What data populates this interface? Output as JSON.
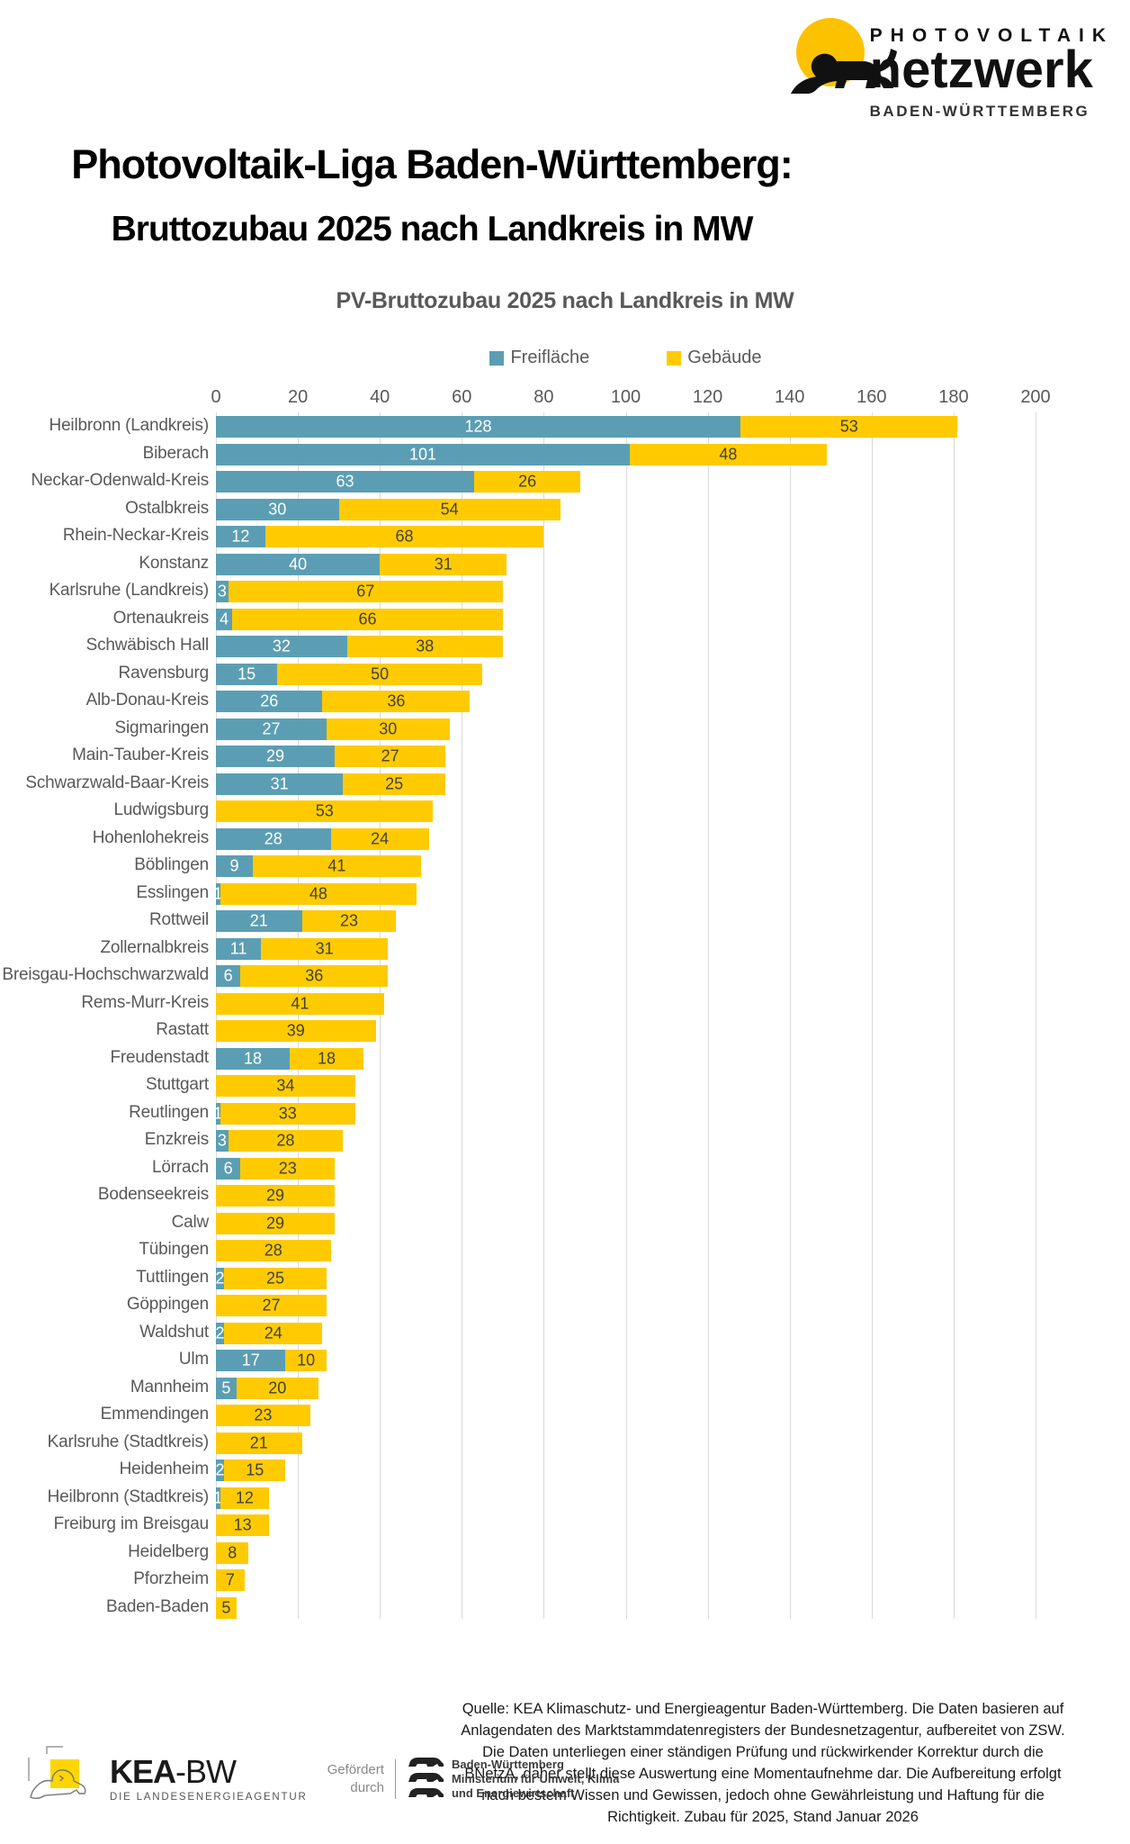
{
  "logo": {
    "line1": "PHOTOVOLTAIK",
    "line2": "netzwerk",
    "line3": "BADEN-WÜRTTEMBERG"
  },
  "title": {
    "line1": "Photovoltaik-Liga Baden-Württemberg:",
    "line2": "Bruttozubau 2025 nach Landkreis in MW"
  },
  "chart_data": {
    "type": "bar",
    "orientation": "horizontal",
    "stacked": true,
    "title": "PV-Bruttozubau 2025 nach Landkreis in MW",
    "legend": [
      "Freifläche",
      "Gebäude"
    ],
    "legend_position": "top",
    "grid": true,
    "x_axis": {
      "min": 0,
      "max": 200,
      "step": 20,
      "ticks": [
        0,
        20,
        40,
        60,
        80,
        100,
        120,
        140,
        160,
        180,
        200
      ]
    },
    "colors": {
      "freiflaeche": "#5B9EB4",
      "gebaeude": "#FFCB00"
    },
    "categories": [
      "Heilbronn (Landkreis)",
      "Biberach",
      "Neckar-Odenwald-Kreis",
      "Ostalbkreis",
      "Rhein-Neckar-Kreis",
      "Konstanz",
      "Karlsruhe (Landkreis)",
      "Ortenaukreis",
      "Schwäbisch Hall",
      "Ravensburg",
      "Alb-Donau-Kreis",
      "Sigmaringen",
      "Main-Tauber-Kreis",
      "Schwarzwald-Baar-Kreis",
      "Ludwigsburg",
      "Hohenlohekreis",
      "Böblingen",
      "Esslingen",
      "Rottweil",
      "Zollernalbkreis",
      "Breisgau-Hochschwarzwald",
      "Rems-Murr-Kreis",
      "Rastatt",
      "Freudenstadt",
      "Stuttgart",
      "Reutlingen",
      "Enzkreis",
      "Lörrach",
      "Bodenseekreis",
      "Calw",
      "Tübingen",
      "Tuttlingen",
      "Göppingen",
      "Waldshut",
      "Ulm",
      "Mannheim",
      "Emmendingen",
      "Karlsruhe (Stadtkreis)",
      "Heidenheim",
      "Heilbronn (Stadtkreis)",
      "Freiburg im Breisgau",
      "Heidelberg",
      "Pforzheim",
      "Baden-Baden"
    ],
    "series": [
      {
        "name": "Freifläche",
        "values": [
          128,
          101,
          63,
          30,
          12,
          40,
          3,
          4,
          32,
          15,
          26,
          27,
          29,
          31,
          0,
          28,
          9,
          1,
          21,
          11,
          6,
          0,
          0,
          18,
          0,
          1,
          3,
          6,
          0,
          0,
          0,
          2,
          0,
          2,
          17,
          5,
          0,
          0,
          2,
          1,
          0,
          0,
          0,
          0
        ]
      },
      {
        "name": "Gebäude",
        "values": [
          53,
          48,
          26,
          54,
          68,
          31,
          67,
          66,
          38,
          50,
          36,
          30,
          27,
          25,
          53,
          24,
          41,
          48,
          23,
          31,
          36,
          41,
          39,
          18,
          34,
          33,
          28,
          23,
          29,
          29,
          28,
          25,
          27,
          24,
          10,
          20,
          23,
          21,
          15,
          12,
          13,
          8,
          7,
          5
        ]
      }
    ]
  },
  "footer": {
    "kea_bold": "KEA",
    "kea_light": "-BW",
    "kea_sub": "DIE LANDESENERGIEAGENTUR",
    "funding_line1": "Gefördert",
    "funding_line2": "durch",
    "ministry_line1": "Baden-Württemberg",
    "ministry_line2": "Ministerium für Umwelt, Klima",
    "ministry_line3": "und Energiewirtschaft",
    "source_lines": [
      "Quelle: KEA Klimaschutz- und Energieagentur Baden-Württemberg. Die Daten basieren auf",
      "Anlagendaten des Marktstammdatenregisters der Bundesnetzagentur, aufbereitet von ZSW.",
      "Die Daten unterliegen einer ständigen Prüfung und rückwirkender Korrektur durch die",
      "BNetzA, daher stellt diese Auswertung eine Momentaufnehme dar. Die Aufbereitung erfolgt",
      "nach bestem Wissen und Gewissen, jedoch ohne Gewährleistung und Haftung für die",
      "Richtigkeit. Zubau für 2025, Stand Januar 2026"
    ]
  }
}
